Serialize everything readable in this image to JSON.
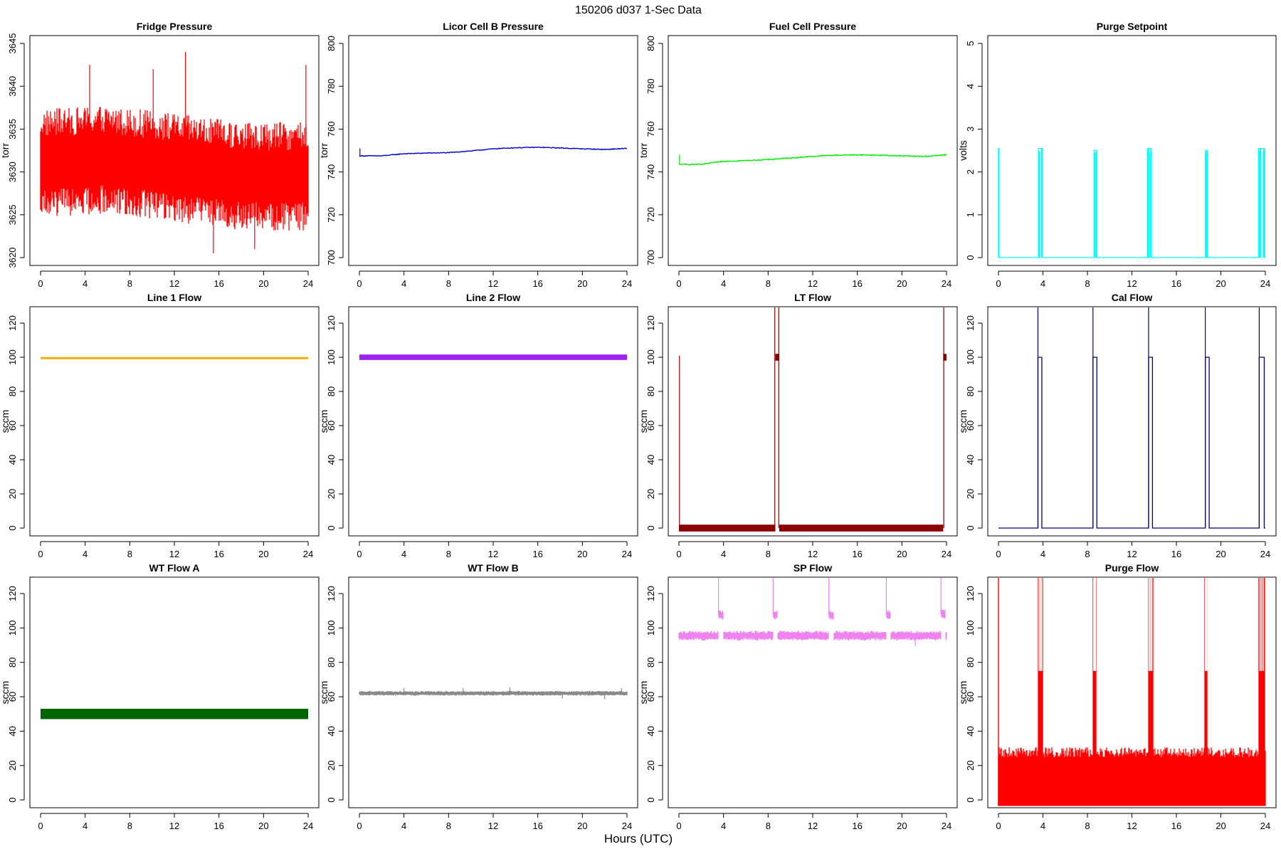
{
  "figure": {
    "title": "150206   d037   1-Sec Data",
    "xlabel": "Hours (UTC)"
  },
  "chart_data": [
    {
      "type": "line",
      "title": "Fridge Pressure",
      "ylabel": "torr",
      "color": "#ff0000",
      "xlim": [
        0,
        24
      ],
      "ylim": [
        3620,
        3645
      ],
      "xticks": [
        0,
        4,
        8,
        12,
        16,
        20,
        24
      ],
      "yticks": [
        3620,
        3625,
        3630,
        3635,
        3640,
        3645
      ],
      "pattern": "noise",
      "base": [
        [
          0,
          3631
        ],
        [
          6,
          3631.5
        ],
        [
          12,
          3630.5
        ],
        [
          18,
          3629.5
        ],
        [
          24,
          3629.5
        ]
      ],
      "noise": 5.5,
      "x": [
        0,
        4,
        8,
        12,
        13,
        16,
        20,
        24
      ],
      "y": [
        3631,
        3631.5,
        3631,
        3630.5,
        3630.5,
        3629.5,
        3629.5,
        3629.5
      ],
      "spikes": [
        [
          4.4,
          3642.5
        ],
        [
          10.1,
          3642
        ],
        [
          13,
          3644
        ],
        [
          23.8,
          3642.5
        ],
        [
          15.5,
          3620.5
        ],
        [
          19.2,
          3621
        ]
      ]
    },
    {
      "type": "line",
      "title": "Licor Cell B Pressure",
      "ylabel": "torr",
      "color": "#0000cc",
      "xlim": [
        0,
        24
      ],
      "ylim": [
        700,
        800
      ],
      "xticks": [
        0,
        4,
        8,
        12,
        16,
        20,
        24
      ],
      "yticks": [
        700,
        720,
        740,
        760,
        780,
        800
      ],
      "pattern": "smooth",
      "x": [
        0,
        2,
        4,
        6,
        8,
        10,
        12,
        14,
        16,
        18,
        20,
        22,
        24
      ],
      "y": [
        747.5,
        747.5,
        748.5,
        748.8,
        749,
        749.8,
        750.8,
        751.3,
        751.5,
        751.2,
        750.8,
        750.5,
        751
      ],
      "noise": 0.35,
      "spikes": [
        [
          0.05,
          751
        ]
      ]
    },
    {
      "type": "line",
      "title": "Fuel Cell Pressure",
      "ylabel": "torr",
      "color": "#00ee00",
      "xlim": [
        0,
        24
      ],
      "ylim": [
        700,
        800
      ],
      "xticks": [
        0,
        4,
        8,
        12,
        16,
        20,
        24
      ],
      "yticks": [
        700,
        720,
        740,
        760,
        780,
        800
      ],
      "pattern": "smooth",
      "x": [
        0,
        2,
        4,
        6,
        8,
        10,
        12,
        14,
        16,
        18,
        20,
        22,
        24
      ],
      "y": [
        743.5,
        743.5,
        745,
        745.3,
        745.8,
        746.5,
        747.3,
        747.8,
        748,
        747.8,
        747.5,
        747.2,
        748
      ],
      "noise": 0.5,
      "spikes": [
        [
          0.05,
          748
        ]
      ]
    },
    {
      "type": "line",
      "title": "Purge Setpoint",
      "ylabel": "volts",
      "color": "#00ffff",
      "xlim": [
        0,
        24
      ],
      "ylim": [
        0,
        5
      ],
      "xticks": [
        0,
        4,
        8,
        12,
        16,
        20,
        24
      ],
      "yticks": [
        0,
        1,
        2,
        3,
        4,
        5
      ],
      "pattern": "pulses",
      "baseline": 0,
      "pulses": [
        [
          0,
          0.05,
          2.55
        ],
        [
          3.6,
          3.95,
          2.55
        ],
        [
          8.6,
          8.85,
          2.5
        ],
        [
          13.4,
          13.75,
          2.55
        ],
        [
          18.6,
          18.8,
          2.5
        ],
        [
          23.4,
          23.95,
          2.55
        ]
      ]
    },
    {
      "type": "line",
      "title": "Line 1 Flow",
      "ylabel": "sccm",
      "color": "#ffa500",
      "xlim": [
        0,
        24
      ],
      "ylim": [
        0,
        125
      ],
      "xticks": [
        0,
        4,
        8,
        12,
        16,
        20,
        24
      ],
      "yticks": [
        0,
        20,
        40,
        60,
        80,
        100,
        120
      ],
      "pattern": "band",
      "x": [
        0,
        24
      ],
      "y": [
        99.5,
        99.5
      ],
      "band": 0.6
    },
    {
      "type": "line",
      "title": "Line 2 Flow",
      "ylabel": "sccm",
      "color": "#a020f0",
      "xlim": [
        0,
        24
      ],
      "ylim": [
        0,
        125
      ],
      "xticks": [
        0,
        4,
        8,
        12,
        16,
        20,
        24
      ],
      "yticks": [
        0,
        20,
        40,
        60,
        80,
        100,
        120
      ],
      "pattern": "band",
      "x": [
        0,
        24
      ],
      "y": [
        100,
        100
      ],
      "band": 1.6
    },
    {
      "type": "line",
      "title": "LT Flow",
      "ylabel": "sccm",
      "color": "#8b0000",
      "xlim": [
        0,
        24
      ],
      "ylim": [
        0,
        125
      ],
      "xticks": [
        0,
        4,
        8,
        12,
        16,
        20,
        24
      ],
      "yticks": [
        0,
        20,
        40,
        60,
        80,
        100,
        120
      ],
      "pattern": "segments",
      "segments": [
        [
          0,
          8.65,
          0,
          2
        ],
        [
          8.65,
          9,
          100,
          2
        ],
        [
          9,
          23.7,
          0,
          2
        ],
        [
          23.7,
          24,
          100,
          2
        ]
      ],
      "spikes": [
        [
          0.05,
          101
        ],
        [
          8.6,
          130
        ],
        [
          8.95,
          130
        ],
        [
          23.75,
          130
        ]
      ]
    },
    {
      "type": "line",
      "title": "Cal Flow",
      "ylabel": "sccm",
      "color": "#00008b",
      "xlim": [
        0,
        24
      ],
      "ylim": [
        0,
        125
      ],
      "xticks": [
        0,
        4,
        8,
        12,
        16,
        20,
        24
      ],
      "yticks": [
        0,
        20,
        40,
        60,
        80,
        100,
        120
      ],
      "pattern": "pulses",
      "baseline": 0,
      "pulses": [
        [
          3.55,
          3.9,
          100
        ],
        [
          8.5,
          8.85,
          100
        ],
        [
          13.5,
          13.85,
          100
        ],
        [
          18.6,
          18.95,
          100
        ],
        [
          23.45,
          23.9,
          100
        ]
      ],
      "spikes": [
        [
          3.55,
          130
        ],
        [
          8.5,
          130
        ],
        [
          13.5,
          130
        ],
        [
          18.6,
          130
        ],
        [
          23.45,
          130
        ]
      ]
    },
    {
      "type": "line",
      "title": "WT Flow A",
      "ylabel": "sccm",
      "color": "#006400",
      "xlim": [
        0,
        24
      ],
      "ylim": [
        0,
        125
      ],
      "xticks": [
        0,
        4,
        8,
        12,
        16,
        20,
        24
      ],
      "yticks": [
        0,
        20,
        40,
        60,
        80,
        100,
        120
      ],
      "pattern": "band",
      "x": [
        0,
        24
      ],
      "y": [
        50,
        50
      ],
      "band": 3
    },
    {
      "type": "line",
      "title": "WT Flow B",
      "ylabel": "sccm",
      "color": "#888888",
      "xlim": [
        0,
        24
      ],
      "ylim": [
        0,
        125
      ],
      "xticks": [
        0,
        4,
        8,
        12,
        16,
        20,
        24
      ],
      "yticks": [
        0,
        20,
        40,
        60,
        80,
        100,
        120
      ],
      "pattern": "noise",
      "base": [
        [
          0,
          62
        ],
        [
          24,
          62
        ]
      ],
      "noise": 1.2,
      "x": [
        0,
        24
      ],
      "y": [
        62,
        62
      ],
      "spikes": [
        [
          4,
          65
        ],
        [
          9.3,
          65
        ],
        [
          13.5,
          65.5
        ],
        [
          18.2,
          59
        ],
        [
          22,
          58.5
        ],
        [
          23.5,
          65
        ]
      ]
    },
    {
      "type": "line",
      "title": "SP Flow",
      "ylabel": "sccm",
      "color": "#ee82ee",
      "xlim": [
        0,
        24
      ],
      "ylim": [
        0,
        125
      ],
      "xticks": [
        0,
        4,
        8,
        12,
        16,
        20,
        24
      ],
      "yticks": [
        0,
        20,
        40,
        60,
        80,
        100,
        120
      ],
      "pattern": "pulses-noise",
      "baseline": 95.5,
      "noise": 2.5,
      "pulses": [
        [
          3.55,
          4,
          107.5
        ],
        [
          8.45,
          8.85,
          107.5
        ],
        [
          13.45,
          13.9,
          107.5
        ],
        [
          18.6,
          19,
          107.5
        ],
        [
          23.5,
          23.9,
          108
        ]
      ],
      "spikes": [
        [
          3.55,
          130
        ],
        [
          8.45,
          130
        ],
        [
          13.45,
          130
        ],
        [
          18.6,
          130
        ],
        [
          23.5,
          130
        ],
        [
          21.2,
          89.5
        ]
      ]
    },
    {
      "type": "line",
      "title": "Purge Flow",
      "ylabel": "sccm",
      "color": "#ff0000",
      "xlim": [
        0,
        24
      ],
      "ylim": [
        0,
        125
      ],
      "xticks": [
        0,
        4,
        8,
        12,
        16,
        20,
        24
      ],
      "yticks": [
        0,
        20,
        40,
        60,
        80,
        100,
        120
      ],
      "pattern": "purge",
      "low": -3.5,
      "high": 30,
      "bursts": [
        [
          3.55,
          4.0
        ],
        [
          8.5,
          8.8
        ],
        [
          13.45,
          13.9
        ],
        [
          18.55,
          18.8
        ],
        [
          23.4,
          23.95
        ]
      ],
      "burstHigh": 130
    }
  ]
}
